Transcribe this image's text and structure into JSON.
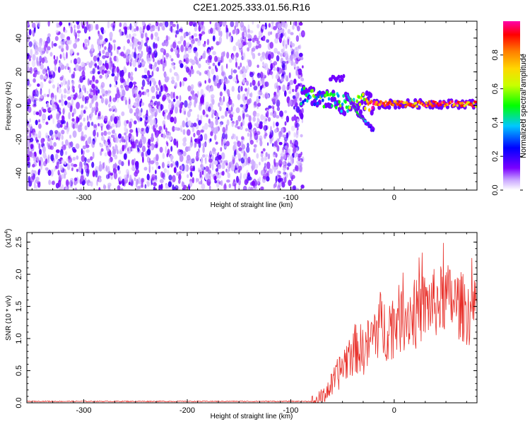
{
  "title": "C2E1.2025.333.01.56.R16",
  "chart_data": [
    {
      "type": "heatmap",
      "name": "spectrogram",
      "xlabel": "Height of straight line (km)",
      "ylabel": "Frequency (Hz)",
      "xlim": [
        -355,
        80
      ],
      "ylim": [
        -50,
        50
      ],
      "xticks": [
        -300,
        -200,
        -100,
        0
      ],
      "yticks": [
        -40,
        -20,
        0,
        20,
        40
      ],
      "noise_region_x": [
        -355,
        -88
      ],
      "signal_track": {
        "x": [
          -90,
          -80,
          -70,
          -60,
          -50,
          -40,
          -30,
          -20,
          -10,
          0,
          20,
          40,
          60,
          80
        ],
        "freq": [
          6,
          5,
          4,
          3,
          1,
          0,
          2,
          1,
          1,
          1,
          1,
          1,
          1,
          1
        ],
        "amplitude": [
          0.35,
          0.4,
          0.45,
          0.5,
          0.5,
          0.55,
          0.6,
          0.95,
          0.85,
          0.9,
          0.8,
          0.9,
          0.85,
          0.8
        ]
      },
      "branch_track": {
        "x": [
          -45,
          -40,
          -35,
          -30,
          -25,
          -20
        ],
        "freq": [
          6,
          0,
          -5,
          -8,
          -11,
          -15
        ],
        "amplitude": [
          0.4,
          0.45,
          0.5,
          0.45,
          0.3,
          0.2
        ]
      },
      "colorbar": {
        "label": "Normalized spectral amplitude",
        "range": [
          0.0,
          1.0
        ],
        "ticks": [
          "0.0",
          "0.2",
          "0.4",
          "0.6",
          "0.8"
        ],
        "tick_values": [
          0.0,
          0.2,
          0.4,
          0.6,
          0.8
        ],
        "colors": [
          "#ffffff",
          "#7b00ff",
          "#0000ff",
          "#00c8ff",
          "#00ff00",
          "#ffff00",
          "#ff7f00",
          "#ff0000",
          "#ff00aa"
        ]
      }
    },
    {
      "type": "line",
      "name": "snr",
      "xlabel": "Height of straight line (km)",
      "ylabel": "SNR (10 * v/v)",
      "y_multiplier": "(x10",
      "y_multiplier_exp": "4",
      "y_multiplier_close": ")",
      "xlim": [
        -355,
        80
      ],
      "ylim": [
        0,
        2.65
      ],
      "xticks": [
        -300,
        -200,
        -100,
        0
      ],
      "yticks": [
        "0.0",
        "0.5",
        "1.0",
        "1.5",
        "2.0",
        "2.5"
      ],
      "ytick_values": [
        0,
        0.5,
        1.0,
        1.5,
        2.0,
        2.5
      ],
      "color": "#e8302a",
      "series": [
        {
          "name": "SNR",
          "x": [
            -355,
            -300,
            -200,
            -100,
            -80,
            -75,
            -70,
            -65,
            -60,
            -55,
            -50,
            -45,
            -40,
            -35,
            -30,
            -25,
            -20,
            -15,
            -10,
            -5,
            0,
            5,
            10,
            15,
            20,
            25,
            30,
            35,
            40,
            45,
            50,
            55,
            60,
            65,
            70,
            75,
            80
          ],
          "y": [
            0.02,
            0.02,
            0.02,
            0.02,
            0.02,
            0.05,
            0.1,
            0.2,
            0.3,
            0.45,
            0.6,
            0.75,
            0.85,
            0.9,
            0.85,
            0.95,
            1.1,
            1.3,
            1.2,
            1.25,
            1.3,
            1.35,
            1.4,
            1.45,
            1.4,
            1.5,
            1.55,
            1.6,
            1.6,
            1.65,
            1.7,
            1.65,
            1.6,
            1.55,
            1.5,
            1.45,
            1.4
          ]
        }
      ]
    }
  ]
}
